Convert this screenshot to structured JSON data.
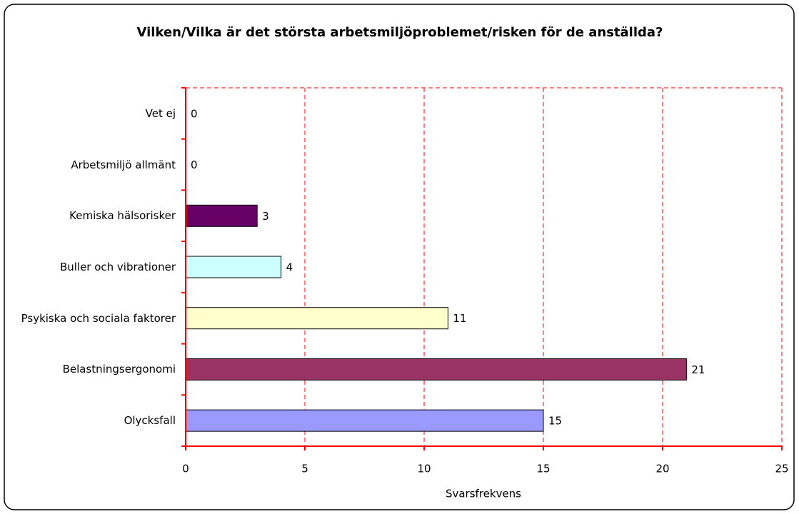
{
  "chart_data": {
    "type": "hbar",
    "title": "Vilken/Vilka är det största arbetsmiljöproblemet/risken för de anställda?",
    "xlabel": "Svarsfrekvens",
    "categories": [
      "Vet ej",
      "Arbetsmiljö allmänt",
      "Kemiska hälsorisker",
      "Buller och vibrationer",
      "Psykiska och sociala faktorer",
      "Belastningsergonomi",
      "Olycksfall"
    ],
    "values": [
      0,
      0,
      3,
      4,
      11,
      21,
      15
    ],
    "colors": [
      null,
      null,
      "#660066",
      "#ccffff",
      "#ffffcc",
      "#993366",
      "#9999ff"
    ],
    "xlim": [
      0,
      25
    ],
    "xticks": [
      0,
      5,
      10,
      15,
      20,
      25
    ],
    "grid": true
  }
}
